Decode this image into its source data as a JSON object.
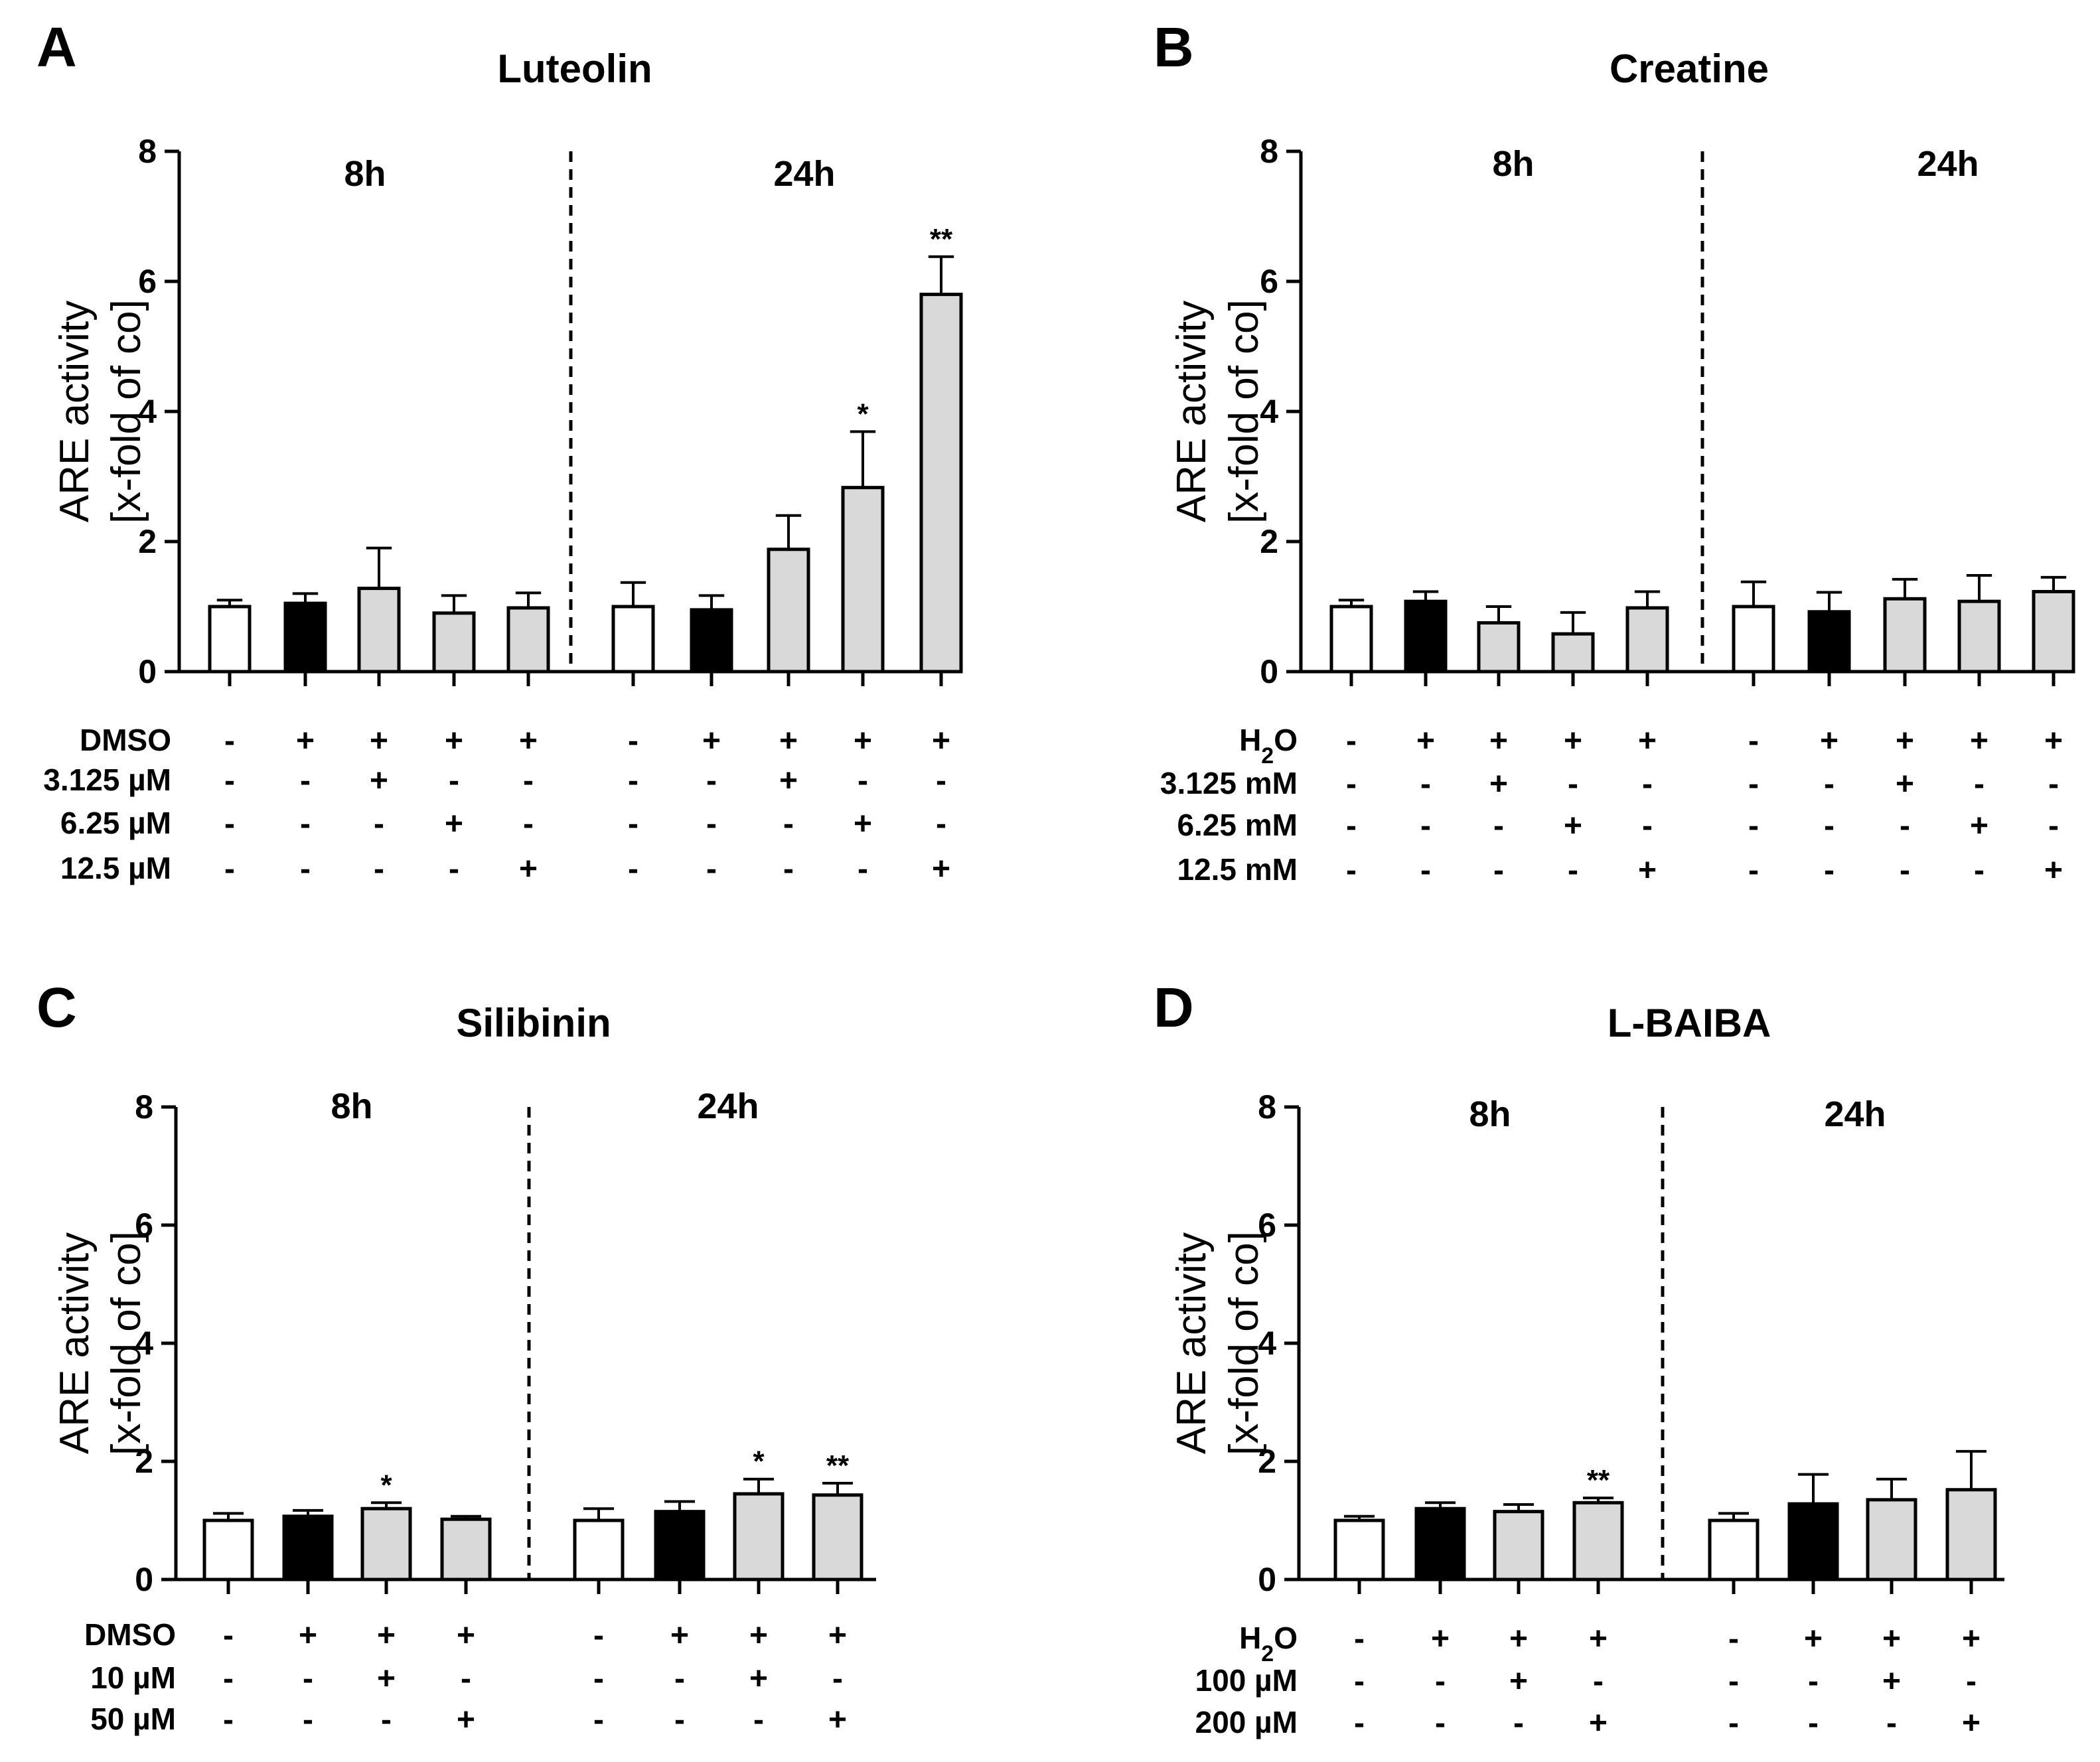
{
  "chart_data": [
    {
      "type": "bar",
      "letter": "A",
      "title": "Luteolin",
      "ylabel_line1": "ARE activity",
      "ylabel_line2": "[x-fold of co]",
      "ylim": [
        0,
        8
      ],
      "yticks": [
        "0",
        "2",
        "4",
        "6",
        "8"
      ],
      "periods": [
        "8h",
        "24h"
      ],
      "bars": [
        {
          "period": "8h",
          "value": 1.0,
          "error": 0.1,
          "fill": "white",
          "sig": ""
        },
        {
          "period": "8h",
          "value": 1.05,
          "error": 0.15,
          "fill": "black",
          "sig": ""
        },
        {
          "period": "8h",
          "value": 1.28,
          "error": 0.62,
          "fill": "gray",
          "sig": ""
        },
        {
          "period": "8h",
          "value": 0.9,
          "error": 0.27,
          "fill": "gray",
          "sig": ""
        },
        {
          "period": "8h",
          "value": 0.98,
          "error": 0.23,
          "fill": "gray",
          "sig": ""
        },
        {
          "period": "24h",
          "value": 1.0,
          "error": 0.37,
          "fill": "white",
          "sig": ""
        },
        {
          "period": "24h",
          "value": 0.95,
          "error": 0.22,
          "fill": "black",
          "sig": ""
        },
        {
          "period": "24h",
          "value": 1.88,
          "error": 0.52,
          "fill": "gray",
          "sig": ""
        },
        {
          "period": "24h",
          "value": 2.83,
          "error": 0.86,
          "fill": "gray",
          "sig": "*"
        },
        {
          "period": "24h",
          "value": 5.8,
          "error": 0.58,
          "fill": "gray",
          "sig": "**"
        }
      ],
      "table": [
        {
          "label": "DMSO",
          "sub": "",
          "rest": "",
          "marks": [
            "-",
            "+",
            "+",
            "+",
            "+",
            "-",
            "+",
            "+",
            "+",
            "+"
          ]
        },
        {
          "label": "3.125 µM",
          "sub": "",
          "rest": "",
          "marks": [
            "-",
            "-",
            "+",
            "-",
            "-",
            "-",
            "-",
            "+",
            "-",
            "-"
          ]
        },
        {
          "label": "6.25 µM",
          "sub": "",
          "rest": "",
          "marks": [
            "-",
            "-",
            "-",
            "+",
            "-",
            "-",
            "-",
            "-",
            "+",
            "-"
          ]
        },
        {
          "label": "12.5 µM",
          "sub": "",
          "rest": "",
          "marks": [
            "-",
            "-",
            "-",
            "-",
            "+",
            "-",
            "-",
            "-",
            "-",
            "+"
          ]
        }
      ]
    },
    {
      "type": "bar",
      "letter": "B",
      "title": "Creatine",
      "ylabel_line1": "ARE activity",
      "ylabel_line2": "[x-fold of co]",
      "ylim": [
        0,
        8
      ],
      "yticks": [
        "0",
        "2",
        "4",
        "6",
        "8"
      ],
      "periods": [
        "8h",
        "24h"
      ],
      "bars": [
        {
          "period": "8h",
          "value": 1.0,
          "error": 0.1,
          "fill": "white",
          "sig": ""
        },
        {
          "period": "8h",
          "value": 1.08,
          "error": 0.15,
          "fill": "black",
          "sig": ""
        },
        {
          "period": "8h",
          "value": 0.75,
          "error": 0.25,
          "fill": "gray",
          "sig": ""
        },
        {
          "period": "8h",
          "value": 0.58,
          "error": 0.33,
          "fill": "gray",
          "sig": ""
        },
        {
          "period": "8h",
          "value": 0.98,
          "error": 0.25,
          "fill": "gray",
          "sig": ""
        },
        {
          "period": "24h",
          "value": 1.0,
          "error": 0.38,
          "fill": "white",
          "sig": ""
        },
        {
          "period": "24h",
          "value": 0.92,
          "error": 0.3,
          "fill": "black",
          "sig": ""
        },
        {
          "period": "24h",
          "value": 1.12,
          "error": 0.3,
          "fill": "gray",
          "sig": ""
        },
        {
          "period": "24h",
          "value": 1.08,
          "error": 0.4,
          "fill": "gray",
          "sig": ""
        },
        {
          "period": "24h",
          "value": 1.23,
          "error": 0.22,
          "fill": "gray",
          "sig": ""
        }
      ],
      "table": [
        {
          "label": "H",
          "sub": "2",
          "rest": "O",
          "marks": [
            "-",
            "+",
            "+",
            "+",
            "+",
            "-",
            "+",
            "+",
            "+",
            "+"
          ]
        },
        {
          "label": "3.125 mM",
          "sub": "",
          "rest": "",
          "marks": [
            "-",
            "-",
            "+",
            "-",
            "-",
            "-",
            "-",
            "+",
            "-",
            "-"
          ]
        },
        {
          "label": "6.25 mM",
          "sub": "",
          "rest": "",
          "marks": [
            "-",
            "-",
            "-",
            "+",
            "-",
            "-",
            "-",
            "-",
            "+",
            "-"
          ]
        },
        {
          "label": "12.5 mM",
          "sub": "",
          "rest": "",
          "marks": [
            "-",
            "-",
            "-",
            "-",
            "+",
            "-",
            "-",
            "-",
            "-",
            "+"
          ]
        }
      ]
    },
    {
      "type": "bar",
      "letter": "C",
      "title": "Silibinin",
      "ylabel_line1": "ARE activity",
      "ylabel_line2": "[x-fold of co]",
      "ylim": [
        0,
        8
      ],
      "yticks": [
        "0",
        "2",
        "4",
        "6",
        "8"
      ],
      "periods": [
        "8h",
        "24h"
      ],
      "bars": [
        {
          "period": "8h",
          "value": 1.0,
          "error": 0.12,
          "fill": "white",
          "sig": ""
        },
        {
          "period": "8h",
          "value": 1.07,
          "error": 0.1,
          "fill": "black",
          "sig": ""
        },
        {
          "period": "8h",
          "value": 1.2,
          "error": 0.1,
          "fill": "gray",
          "sig": "*"
        },
        {
          "period": "8h",
          "value": 1.02,
          "error": 0.05,
          "fill": "gray",
          "sig": ""
        },
        {
          "period": "24h",
          "value": 1.0,
          "error": 0.2,
          "fill": "white",
          "sig": ""
        },
        {
          "period": "24h",
          "value": 1.15,
          "error": 0.17,
          "fill": "black",
          "sig": ""
        },
        {
          "period": "24h",
          "value": 1.45,
          "error": 0.25,
          "fill": "gray",
          "sig": "*"
        },
        {
          "period": "24h",
          "value": 1.43,
          "error": 0.2,
          "fill": "gray",
          "sig": "**"
        }
      ],
      "table": [
        {
          "label": "DMSO",
          "sub": "",
          "rest": "",
          "marks": [
            "-",
            "+",
            "+",
            "+",
            "-",
            "+",
            "+",
            "+"
          ]
        },
        {
          "label": "10 µM",
          "sub": "",
          "rest": "",
          "marks": [
            "-",
            "-",
            "+",
            "-",
            "-",
            "-",
            "+",
            "-"
          ]
        },
        {
          "label": "50 µM",
          "sub": "",
          "rest": "",
          "marks": [
            "-",
            "-",
            "-",
            "+",
            "-",
            "-",
            "-",
            "+"
          ]
        }
      ]
    },
    {
      "type": "bar",
      "letter": "D",
      "title": "L-BAIBA",
      "ylabel_line1": "ARE activity",
      "ylabel_line2": "[x-fold of co]",
      "ylim": [
        0,
        8
      ],
      "yticks": [
        "0",
        "2",
        "4",
        "6",
        "8"
      ],
      "periods": [
        "8h",
        "24h"
      ],
      "bars": [
        {
          "period": "8h",
          "value": 1.0,
          "error": 0.07,
          "fill": "white",
          "sig": ""
        },
        {
          "period": "8h",
          "value": 1.2,
          "error": 0.1,
          "fill": "black",
          "sig": ""
        },
        {
          "period": "8h",
          "value": 1.15,
          "error": 0.12,
          "fill": "gray",
          "sig": ""
        },
        {
          "period": "8h",
          "value": 1.3,
          "error": 0.08,
          "fill": "gray",
          "sig": "**"
        },
        {
          "period": "24h",
          "value": 1.0,
          "error": 0.12,
          "fill": "white",
          "sig": ""
        },
        {
          "period": "24h",
          "value": 1.28,
          "error": 0.5,
          "fill": "black",
          "sig": ""
        },
        {
          "period": "24h",
          "value": 1.35,
          "error": 0.35,
          "fill": "gray",
          "sig": ""
        },
        {
          "period": "24h",
          "value": 1.52,
          "error": 0.65,
          "fill": "gray",
          "sig": ""
        }
      ],
      "table": [
        {
          "label": "H",
          "sub": "2",
          "rest": "O",
          "marks": [
            "-",
            "+",
            "+",
            "+",
            "-",
            "+",
            "+",
            "+"
          ]
        },
        {
          "label": "100 µM",
          "sub": "",
          "rest": "",
          "marks": [
            "-",
            "-",
            "+",
            "-",
            "-",
            "-",
            "+",
            "-"
          ]
        },
        {
          "label": "200 µM",
          "sub": "",
          "rest": "",
          "marks": [
            "-",
            "-",
            "-",
            "+",
            "-",
            "-",
            "-",
            "+"
          ]
        }
      ]
    }
  ],
  "colors": {
    "white_bar": "#ffffff",
    "black_bar": "#000000",
    "gray_bar": "#d9d9d9",
    "stroke": "#000000"
  }
}
